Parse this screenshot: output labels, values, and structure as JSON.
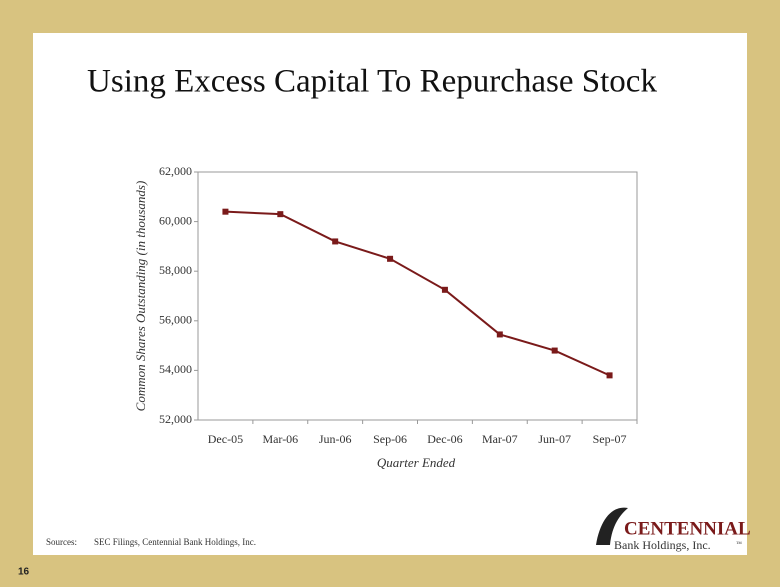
{
  "chart_data": {
    "type": "line",
    "title": "Using Excess Capital To Repurchase Stock",
    "x_label": "Quarter Ended",
    "y_label": "Common Shares Outstanding (in thousands)",
    "categories": [
      "Dec-05",
      "Mar-06",
      "Jun-06",
      "Sep-06",
      "Dec-06",
      "Mar-07",
      "Jun-07",
      "Sep-07"
    ],
    "values": [
      60400,
      60300,
      59200,
      58500,
      57250,
      55450,
      54800,
      53800
    ],
    "color": "#7a1a1a",
    "ylim": [
      52000,
      62000
    ],
    "yticks": [
      {
        "value": 52000,
        "label": "52,000"
      },
      {
        "value": 54000,
        "label": "54,000"
      },
      {
        "value": 56000,
        "label": "56,000"
      },
      {
        "value": 58000,
        "label": "58,000"
      },
      {
        "value": 60000,
        "label": "60,000"
      },
      {
        "value": 62000,
        "label": "62,000"
      }
    ],
    "grid": false
  },
  "sources": {
    "label": "Sources:",
    "text": "SEC Filings, Centennial Bank Holdings, Inc."
  },
  "logo": {
    "name": "CENTENNIAL",
    "subtitle": "Bank Holdings, Inc.",
    "mark": "™"
  },
  "page_number": "16"
}
